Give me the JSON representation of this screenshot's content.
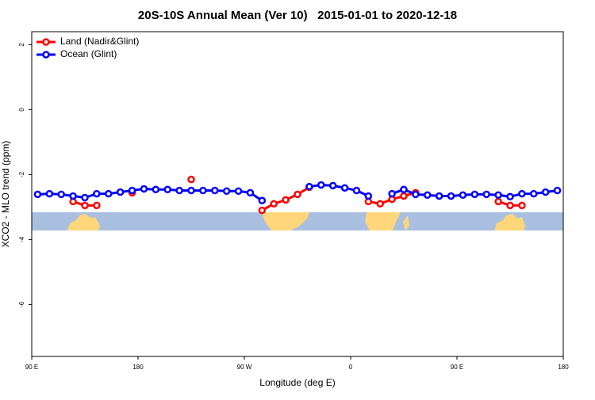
{
  "chart_data": {
    "type": "line",
    "title": "20S-10S Annual Mean (Ver 10)   2015-01-01 to 2020-12-18",
    "x_label": "Longitude (deg E)",
    "y_label": "XCO2 - MLO trend (ppm)",
    "x": [
      95,
      105,
      115,
      125,
      135,
      145,
      155,
      165,
      175,
      185,
      195,
      205,
      215,
      225,
      235,
      245,
      255,
      265,
      275,
      285,
      295,
      305,
      315,
      325,
      335,
      345,
      355,
      365,
      375,
      385,
      395,
      405,
      415,
      425,
      435,
      445,
      455,
      465,
      475,
      485,
      495,
      505,
      515,
      525,
      535
    ],
    "series": [
      {
        "name": "Land (Nadir&Glint)",
        "color": "#ff0000",
        "values": [
          null,
          null,
          null,
          -2.83,
          -2.95,
          -2.95,
          null,
          null,
          -2.56,
          null,
          null,
          null,
          null,
          -2.15,
          null,
          null,
          null,
          null,
          null,
          -3.1,
          -2.9,
          -2.78,
          -2.61,
          -2.39,
          null,
          null,
          null,
          null,
          -2.83,
          -2.9,
          -2.76,
          -2.66,
          -2.56,
          null,
          null,
          null,
          null,
          null,
          null,
          -2.83,
          -2.95,
          -2.95,
          null,
          null,
          null
        ]
      },
      {
        "name": "Ocean (Glint)",
        "color": "#0000ff",
        "values": [
          -2.61,
          -2.59,
          -2.61,
          -2.66,
          -2.71,
          -2.59,
          -2.59,
          -2.54,
          -2.49,
          -2.44,
          -2.46,
          -2.46,
          -2.49,
          -2.49,
          -2.49,
          -2.49,
          -2.51,
          -2.51,
          -2.56,
          -2.8,
          null,
          null,
          null,
          -2.37,
          -2.32,
          -2.34,
          -2.41,
          -2.49,
          -2.66,
          null,
          -2.59,
          -2.46,
          -2.61,
          -2.63,
          -2.66,
          -2.66,
          -2.63,
          -2.61,
          -2.61,
          -2.63,
          -2.68,
          -2.59,
          -2.59,
          -2.54,
          -2.49
        ]
      }
    ],
    "xlim": [
      90,
      540
    ],
    "xticks": [
      {
        "value": 90,
        "label": "90 E"
      },
      {
        "value": 180,
        "label": "180"
      },
      {
        "value": 270,
        "label": "90 W"
      },
      {
        "value": 360,
        "label": "0"
      },
      {
        "value": 450,
        "label": "90 E"
      },
      {
        "value": 540,
        "label": "180"
      }
    ],
    "ylim": [
      -7.6,
      2.4
    ],
    "yticks": [
      -6,
      -4,
      -2,
      0,
      2
    ],
    "legend": "top-left"
  }
}
